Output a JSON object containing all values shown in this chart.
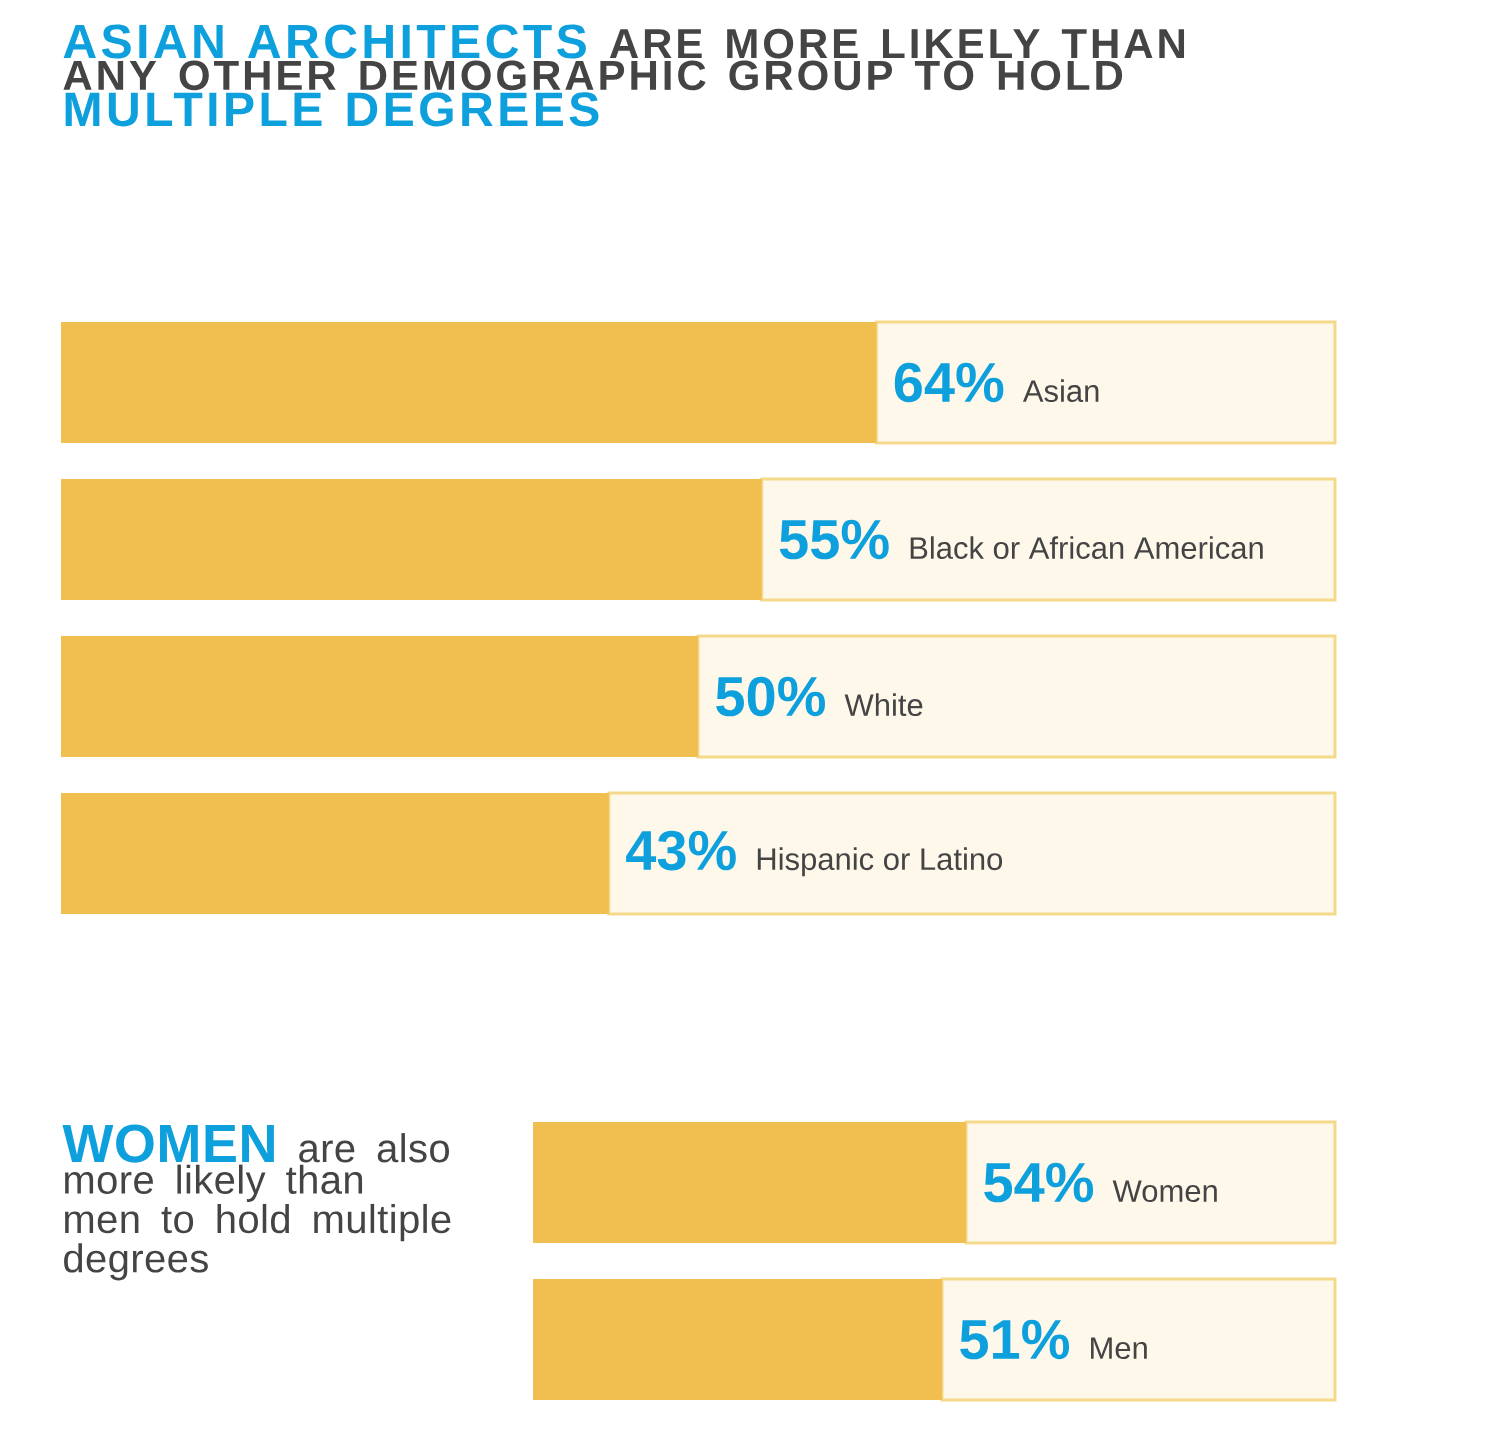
{
  "chart_data": [
    {
      "type": "bar",
      "orientation": "horizontal",
      "stacked": true,
      "title": "**ASIAN ARCHITECTS** ARE MORE LIKELY THAN ANY OTHER DEMOGRAPHIC GROUP TO HOLD **MULTIPLE DEGREES**",
      "categories": [
        "Asian",
        "Black or African American",
        "White",
        "Hispanic or Latino"
      ],
      "series": [
        {
          "color": "#f0bf4f",
          "values": [
            64,
            55,
            50,
            43
          ],
          "value_labels": [
            "64%",
            "55%",
            "50%",
            "43%"
          ]
        },
        {
          "color": "#fdf8ea",
          "values": [
            36,
            45,
            50,
            57
          ]
        }
      ],
      "xlim": [
        0,
        100
      ]
    },
    {
      "type": "bar",
      "orientation": "horizontal",
      "stacked": true,
      "title": "**WOMEN** are also more likely than men to hold multiple degrees",
      "categories": [
        "Women",
        "Men"
      ],
      "series": [
        {
          "color": "#f0bf4f",
          "values": [
            54,
            51
          ],
          "value_labels": [
            "54%",
            "51%"
          ]
        },
        {
          "color": "#fdf8ea",
          "values": [
            46,
            49
          ]
        }
      ],
      "xlim": [
        0,
        100
      ]
    }
  ]
}
